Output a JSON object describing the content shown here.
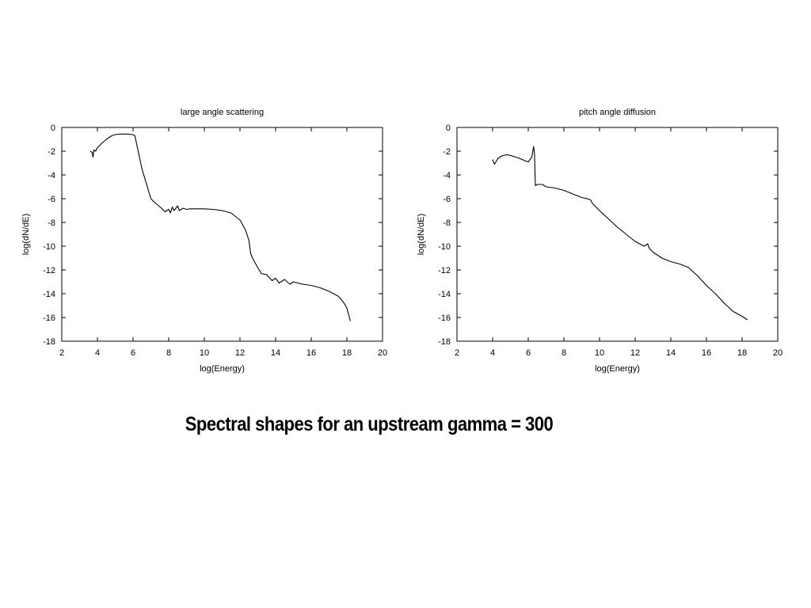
{
  "caption": "Spectral shapes for an upstream gamma = 300",
  "chart_data": [
    {
      "type": "line",
      "title": "large angle scattering",
      "xlabel": "log(Energy)",
      "ylabel": "log(dN/dE)",
      "xlim": [
        2,
        20
      ],
      "ylim": [
        -18,
        0
      ],
      "xticks": [
        2,
        4,
        6,
        8,
        10,
        12,
        14,
        16,
        18,
        20
      ],
      "yticks": [
        0,
        -2,
        -4,
        -6,
        -8,
        -10,
        -12,
        -14,
        -16,
        -18
      ],
      "grid": false,
      "series": [
        {
          "x": [
            3.6,
            3.7,
            3.75,
            3.8,
            3.9,
            4.0,
            4.2,
            4.5,
            4.8,
            5.0,
            5.3,
            5.6,
            6.0,
            6.1,
            6.5,
            7.0,
            7.2,
            7.6,
            7.8,
            8.0,
            8.1,
            8.2,
            8.3,
            8.5,
            8.6,
            8.8,
            9.0,
            9.2,
            9.5,
            10.0,
            10.5,
            11.0,
            11.5,
            12.0,
            12.3,
            12.5,
            12.6,
            12.7,
            13.0,
            13.2,
            13.5,
            13.8,
            14.0,
            14.2,
            14.5,
            14.8,
            15.0,
            15.5,
            16.0,
            16.5,
            17.0,
            17.5,
            17.8,
            18.0,
            18.1,
            18.2
          ],
          "y": [
            -2.0,
            -2.1,
            -2.5,
            -1.9,
            -2.0,
            -1.7,
            -1.4,
            -1.0,
            -0.7,
            -0.6,
            -0.55,
            -0.55,
            -0.6,
            -0.7,
            -3.5,
            -6.0,
            -6.3,
            -6.8,
            -7.1,
            -6.9,
            -7.2,
            -6.7,
            -7.0,
            -6.6,
            -7.0,
            -6.8,
            -6.9,
            -6.85,
            -6.85,
            -6.85,
            -6.9,
            -7.0,
            -7.2,
            -7.8,
            -8.6,
            -9.5,
            -10.6,
            -11.0,
            -11.8,
            -12.3,
            -12.4,
            -12.9,
            -12.7,
            -13.1,
            -12.8,
            -13.2,
            -13.0,
            -13.2,
            -13.3,
            -13.5,
            -13.8,
            -14.2,
            -14.7,
            -15.2,
            -15.8,
            -16.3
          ]
        }
      ]
    },
    {
      "type": "line",
      "title": "pitch angle diffusion",
      "xlabel": "log(Energy)",
      "ylabel": "log(dN/dE)",
      "xlim": [
        2,
        20
      ],
      "ylim": [
        -18,
        0
      ],
      "xticks": [
        2,
        4,
        6,
        8,
        10,
        12,
        14,
        16,
        18,
        20
      ],
      "yticks": [
        0,
        -2,
        -4,
        -6,
        -8,
        -10,
        -12,
        -14,
        -16,
        -18
      ],
      "grid": false,
      "series": [
        {
          "x": [
            4.0,
            4.05,
            4.1,
            4.3,
            4.5,
            4.8,
            5.0,
            5.3,
            5.5,
            5.8,
            6.0,
            6.2,
            6.3,
            6.35,
            6.4,
            6.5,
            6.8,
            7.0,
            7.5,
            8.0,
            8.5,
            9.0,
            9.3,
            9.5,
            9.6,
            10.0,
            10.5,
            11.0,
            11.5,
            12.0,
            12.5,
            12.7,
            12.8,
            13.0,
            13.5,
            14.0,
            14.5,
            15.0,
            15.5,
            16.0,
            16.5,
            17.0,
            17.5,
            18.0,
            18.3
          ],
          "y": [
            -2.7,
            -2.9,
            -3.1,
            -2.6,
            -2.4,
            -2.3,
            -2.35,
            -2.5,
            -2.6,
            -2.8,
            -2.9,
            -2.5,
            -1.6,
            -2.2,
            -4.9,
            -4.8,
            -4.8,
            -5.0,
            -5.1,
            -5.3,
            -5.6,
            -5.9,
            -6.0,
            -6.1,
            -6.4,
            -7.0,
            -7.7,
            -8.4,
            -9.0,
            -9.6,
            -10.0,
            -9.8,
            -10.2,
            -10.5,
            -11.0,
            -11.3,
            -11.5,
            -11.8,
            -12.5,
            -13.3,
            -14.0,
            -14.8,
            -15.5,
            -15.9,
            -16.2
          ]
        }
      ]
    }
  ]
}
